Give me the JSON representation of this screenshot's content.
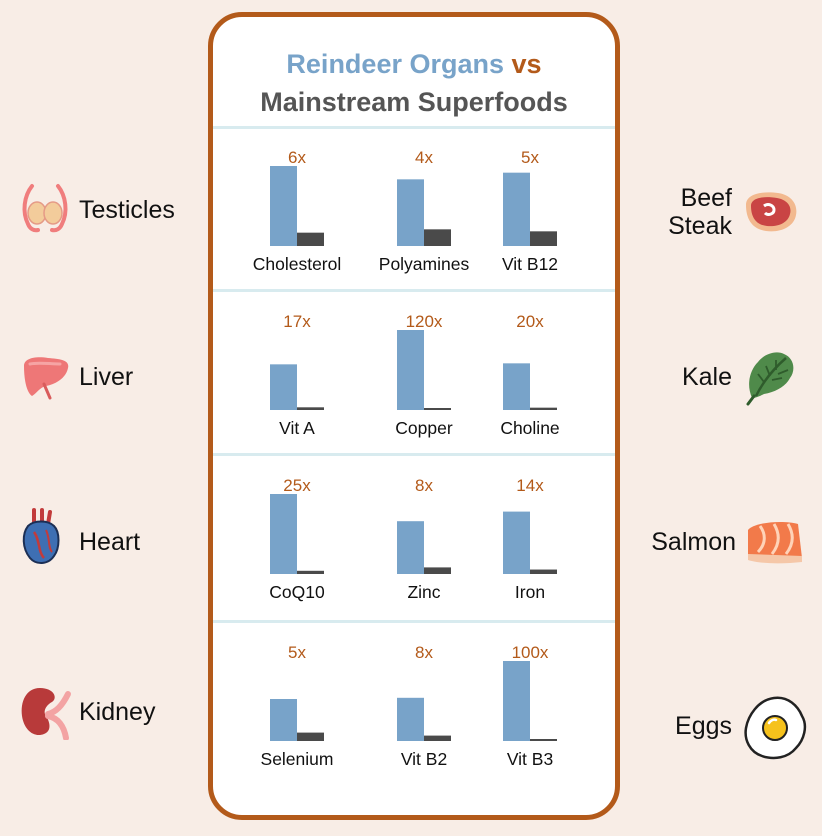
{
  "title": {
    "part1": "Reindeer Organs",
    "vs": "vs",
    "part2": "Mainstream Superfoods"
  },
  "colors": {
    "organ_bar": "#78a3c9",
    "superfood_bar": "#4a4a4a",
    "accent": "#b35a1a",
    "background": "#f8ede6"
  },
  "rows": [
    {
      "left": "Testicles",
      "right": "Beef Steak",
      "left_icon": "testicles-icon",
      "right_icon": "steak-icon"
    },
    {
      "left": "Liver",
      "right": "Kale",
      "left_icon": "liver-icon",
      "right_icon": "kale-icon"
    },
    {
      "left": "Heart",
      "right": "Salmon",
      "left_icon": "heart-icon",
      "right_icon": "salmon-icon"
    },
    {
      "left": "Kidney",
      "right": "Eggs",
      "left_icon": "kidney-icon",
      "right_icon": "egg-icon"
    }
  ],
  "chart_data": {
    "type": "bar",
    "series_colors": [
      "#78a3c9",
      "#4a4a4a"
    ],
    "groups": [
      {
        "categories": [
          "Cholesterol",
          "Polyamines",
          "Vit B12"
        ],
        "labels": [
          "6x",
          "4x",
          "5x"
        ],
        "organ": [
          6,
          4,
          5
        ],
        "superfood": [
          1,
          1,
          1
        ]
      },
      {
        "categories": [
          "Vit A",
          "Copper",
          "Choline"
        ],
        "labels": [
          "17x",
          "120x",
          "20x"
        ],
        "organ": [
          17,
          120,
          20
        ],
        "superfood": [
          1,
          1,
          1
        ]
      },
      {
        "categories": [
          "CoQ10",
          "Zinc",
          "Iron"
        ],
        "labels": [
          "25x",
          "8x",
          "14x"
        ],
        "organ": [
          25,
          8,
          14
        ],
        "superfood": [
          1,
          1,
          1
        ]
      },
      {
        "categories": [
          "Selenium",
          "Vit B2",
          "Vit B3"
        ],
        "labels": [
          "5x",
          "8x",
          "100x"
        ],
        "organ": [
          5,
          8,
          100
        ],
        "superfood": [
          1,
          1,
          1
        ]
      }
    ]
  }
}
